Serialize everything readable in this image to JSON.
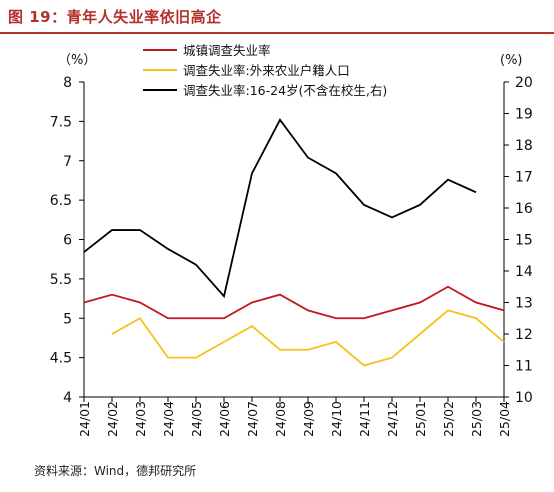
{
  "title": "图 19：青年人失业率依旧高企",
  "source": "资料来源：Wind，德邦研究所",
  "chart_data": {
    "type": "line",
    "categories": [
      "24/01",
      "24/02",
      "24/03",
      "24/04",
      "24/05",
      "24/06",
      "24/07",
      "24/08",
      "24/09",
      "24/10",
      "24/11",
      "24/12",
      "25/01",
      "25/02",
      "25/03",
      "25/04"
    ],
    "left_axis": {
      "unit": "（%）",
      "ylim": [
        4,
        8
      ],
      "ticks": [
        "4",
        "4.5",
        "5",
        "5.5",
        "6",
        "6.5",
        "7",
        "7.5",
        "8"
      ]
    },
    "right_axis": {
      "unit": "(%)",
      "ylim": [
        10,
        20
      ],
      "ticks": [
        "10",
        "11",
        "12",
        "13",
        "14",
        "15",
        "16",
        "17",
        "18",
        "19",
        "20"
      ]
    },
    "grid": false,
    "legend_position": "top-center",
    "series": [
      {
        "name": "城镇调查失业率",
        "axis": "left",
        "color": "#c0161c",
        "values": [
          5.2,
          5.3,
          5.2,
          5.0,
          5.0,
          5.0,
          5.2,
          5.3,
          5.1,
          5.0,
          5.0,
          5.1,
          5.2,
          5.4,
          5.2,
          5.1
        ]
      },
      {
        "name": "调查失业率:外来农业户籍人口",
        "axis": "left",
        "color": "#f5c21c",
        "values": [
          null,
          4.8,
          5.0,
          4.5,
          4.5,
          4.7,
          4.9,
          4.6,
          4.6,
          4.7,
          4.4,
          4.5,
          4.8,
          5.1,
          5.0,
          4.7
        ]
      },
      {
        "name": "调查失业率:16-24岁(不含在校生,右)",
        "axis": "right",
        "color": "#000000",
        "values": [
          14.6,
          15.3,
          15.3,
          14.7,
          14.2,
          13.2,
          17.1,
          18.8,
          17.6,
          17.1,
          16.1,
          15.7,
          16.1,
          16.9,
          16.5,
          null
        ]
      }
    ]
  }
}
